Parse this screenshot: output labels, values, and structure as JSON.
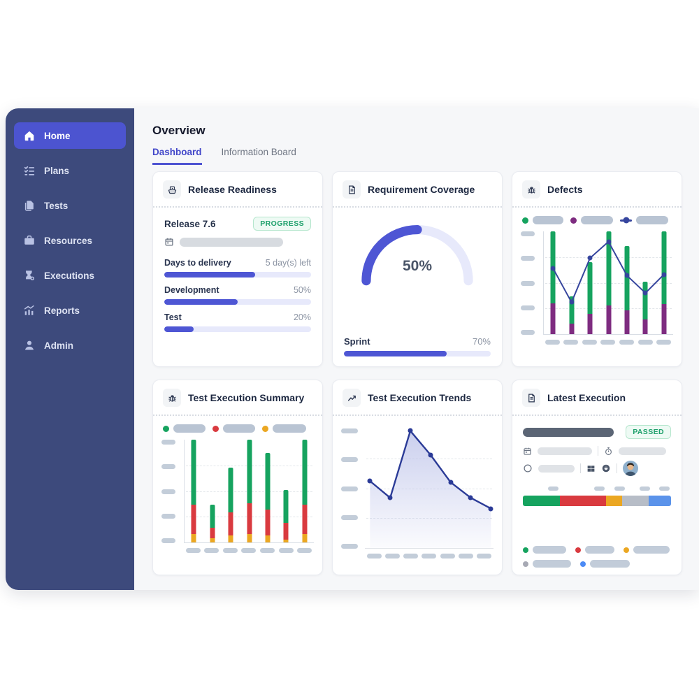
{
  "colors": {
    "sidebar_bg": "#3d4a7c",
    "active_item_bg": "#4c54d0",
    "accent_indigo": "#4e56d4",
    "track_lavender": "#e7e9fb",
    "green": "#16a35f",
    "purple": "#7e2c80",
    "navy_line": "#36459e",
    "red": "#d93a3f",
    "amber": "#eba722",
    "gray_segment": "#b7bdc7",
    "blue_segment": "#5b93ea",
    "pill_gray": "#c3cdd9",
    "badge_green": "#1ea06b",
    "main_bg": "#f6f7f9"
  },
  "sidebar": {
    "items": [
      {
        "label": "Home",
        "active": true
      },
      {
        "label": "Plans",
        "active": false
      },
      {
        "label": "Tests",
        "active": false
      },
      {
        "label": "Resources",
        "active": false
      },
      {
        "label": "Executions",
        "active": false
      },
      {
        "label": "Reports",
        "active": false
      },
      {
        "label": "Admin",
        "active": false
      }
    ]
  },
  "header": {
    "title": "Overview",
    "tabs": [
      {
        "label": "Dashboard",
        "active": true
      },
      {
        "label": "Information Board",
        "active": false
      }
    ]
  },
  "cards": {
    "release_readiness": {
      "title": "Release Readiness",
      "release_label": "Release 7.6",
      "status_badge": "PROGRESS",
      "rows": [
        {
          "label": "Days to delivery",
          "value": "5 day(s) left",
          "percent": 62
        },
        {
          "label": "Development",
          "value": "50%",
          "percent": 50
        },
        {
          "label": "Test",
          "value": "20%",
          "percent": 20
        }
      ]
    },
    "requirement_coverage": {
      "title": "Requirement Coverage",
      "gauge_percent": 50,
      "gauge_label": "50%",
      "sprint_label": "Sprint",
      "sprint_value": "70%",
      "sprint_percent": 70
    },
    "defects": {
      "title": "Defects"
    },
    "test_execution_summary": {
      "title": "Test Execution Summary"
    },
    "test_execution_trends": {
      "title": "Test Execution Trends"
    },
    "latest_execution": {
      "title": "Latest Execution",
      "status_badge": "PASSED",
      "segments": [
        {
          "color": "#16a35f",
          "pct": 25
        },
        {
          "color": "#d93a3f",
          "pct": 31
        },
        {
          "color": "#eba722",
          "pct": 11
        },
        {
          "color": "#b7bdc7",
          "pct": 18
        },
        {
          "color": "#5b93ea",
          "pct": 15
        }
      ],
      "marker_pills_left_pct": [
        17,
        48,
        62,
        79,
        92
      ],
      "legend_rows": [
        [
          {
            "color": "#16a35f",
            "w": 48
          },
          {
            "color": "#d93a3f",
            "w": 42
          },
          {
            "color": "#eba722",
            "w": 52
          }
        ],
        [
          {
            "color": "#a7a9b4",
            "w": 55
          },
          {
            "color": "#4c8bf5",
            "w": 57
          }
        ]
      ]
    }
  },
  "chart_data": [
    {
      "id": "defects",
      "type": "bar",
      "subtype": "stacked-bars-with-line",
      "title": "Defects",
      "n_points": 7,
      "tick_labels_redacted": true,
      "axis": {
        "y_ticks": 5,
        "x_ticks": 7,
        "ylim": [
          0,
          100
        ],
        "grid": "dashed"
      },
      "legend": [
        {
          "type": "dot",
          "color": "#16a35f",
          "pill_w": 44
        },
        {
          "type": "dot",
          "color": "#7e2c80",
          "pill_w": 46
        },
        {
          "type": "line-dot",
          "color": "#36459e",
          "pill_w": 46
        }
      ],
      "series": [
        {
          "name": "stack-bottom",
          "kind": "bar",
          "color": "#7e2c80",
          "values": [
            30,
            10,
            20,
            28,
            23,
            14,
            29
          ]
        },
        {
          "name": "stack-top",
          "kind": "bar",
          "color": "#16a35f",
          "values": [
            70,
            27,
            50,
            72,
            63,
            37,
            71
          ]
        },
        {
          "name": "trend-line",
          "kind": "line",
          "color": "#36459e",
          "values": [
            64,
            31,
            74,
            90,
            57,
            40,
            58
          ]
        }
      ]
    },
    {
      "id": "test_execution_summary",
      "type": "bar",
      "subtype": "stacked-bars",
      "title": "Test Execution Summary",
      "n_points": 7,
      "tick_labels_redacted": true,
      "axis": {
        "y_ticks": 5,
        "x_ticks": 7,
        "ylim": [
          0,
          100
        ],
        "grid": "dashed"
      },
      "legend": [
        {
          "type": "dot",
          "color": "#16a35f",
          "pill_w": 46
        },
        {
          "type": "dot",
          "color": "#d93a3f",
          "pill_w": 46
        },
        {
          "type": "dot",
          "color": "#eba722",
          "pill_w": 48
        }
      ],
      "series": [
        {
          "name": "stack-bottom",
          "kind": "bar",
          "color": "#eba722",
          "values": [
            8,
            4,
            7,
            8,
            7,
            3,
            8
          ]
        },
        {
          "name": "stack-middle",
          "kind": "bar",
          "color": "#d93a3f",
          "values": [
            29,
            10,
            22,
            30,
            25,
            16,
            29
          ]
        },
        {
          "name": "stack-top",
          "kind": "bar",
          "color": "#16a35f",
          "values": [
            63,
            23,
            44,
            62,
            55,
            32,
            63
          ]
        }
      ]
    },
    {
      "id": "test_execution_trends",
      "type": "area",
      "title": "Test Execution Trends",
      "n_points": 7,
      "tick_labels_redacted": true,
      "axis": {
        "y_ticks": 5,
        "x_ticks": 7,
        "ylim": [
          0,
          100
        ],
        "grid": "dashed"
      },
      "series": [
        {
          "name": "trend",
          "kind": "area-line",
          "color": "#2b3b97",
          "fill": "#b9bfe8",
          "values": [
            56,
            42,
            98,
            78,
            55,
            42,
            33
          ]
        }
      ]
    },
    {
      "id": "latest_execution_bar",
      "type": "bar",
      "subtype": "horizontal-segmented",
      "title": "Latest Execution result distribution (%)",
      "values": [
        25,
        31,
        11,
        18,
        15
      ],
      "colors": [
        "#16a35f",
        "#d93a3f",
        "#eba722",
        "#b7bdc7",
        "#5b93ea"
      ]
    }
  ]
}
